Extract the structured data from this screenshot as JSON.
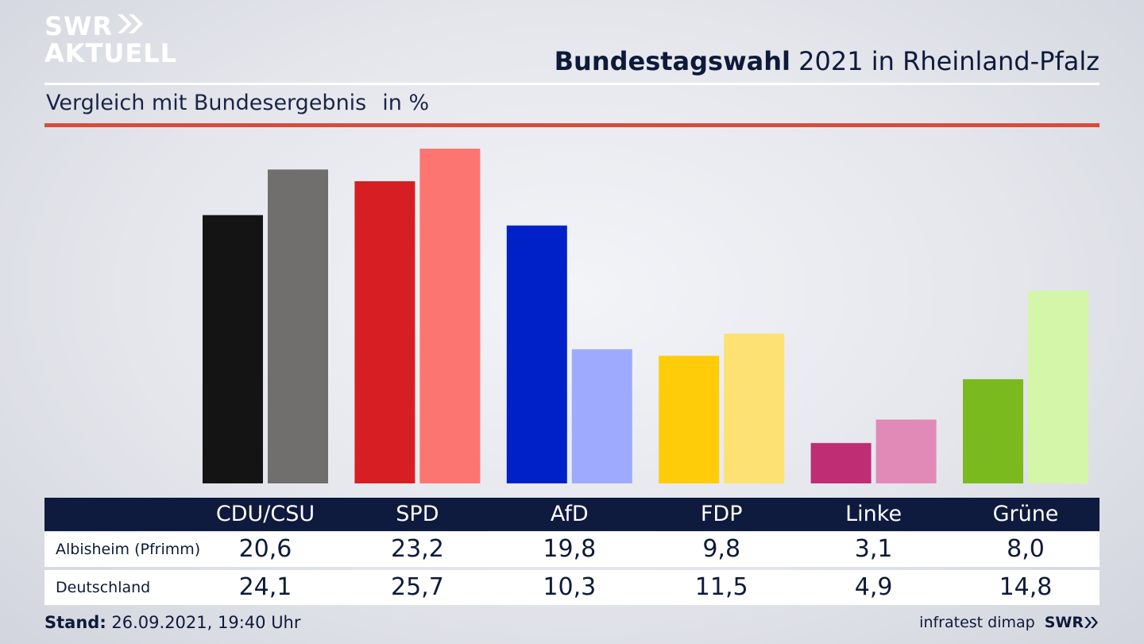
{
  "branding": {
    "logo_line1": "SWR",
    "logo_line2": "AKTUELL",
    "source": "infratest dimap",
    "source_brand": "SWR"
  },
  "header": {
    "title_bold": "Bundestagswahl",
    "title_rest": "2021 in Rheinland-Pfalz",
    "subtitle": "Vergleich mit Bundesergebnis",
    "unit": "in %"
  },
  "footer": {
    "stand_label": "Stand:",
    "stand_value": "26.09.2021, 19:40 Uhr"
  },
  "colors": {
    "CDU/CSU": [
      "#141414",
      "#716f6d"
    ],
    "SPD": [
      "#d71f23",
      "#fd7570"
    ],
    "AfD": [
      "#0121c8",
      "#9eaafe"
    ],
    "FDP": [
      "#fecc09",
      "#fde173"
    ],
    "Linke": [
      "#bf2d74",
      "#e18ab8"
    ],
    "Grüne": [
      "#7aba1f",
      "#d4f6a9"
    ],
    "header_bg": "#0e1a3e",
    "accent_line": "#d94b3c"
  },
  "chart_data": {
    "type": "bar",
    "title": "Bundestagswahl 2021 in Rheinland-Pfalz",
    "subtitle": "Vergleich mit Bundesergebnis",
    "ylabel": "in %",
    "categories": [
      "CDU/CSU",
      "SPD",
      "AfD",
      "FDP",
      "Linke",
      "Grüne"
    ],
    "series": [
      {
        "name": "Albisheim (Pfrimm)",
        "values": [
          "20,6",
          "23,2",
          "19,8",
          "9,8",
          "3,1",
          "8,0"
        ]
      },
      {
        "name": "Deutschland",
        "values": [
          "24,1",
          "25,7",
          "10,3",
          "11,5",
          "4,9",
          "14,8"
        ]
      }
    ],
    "ylim": [
      0,
      25.7
    ]
  }
}
